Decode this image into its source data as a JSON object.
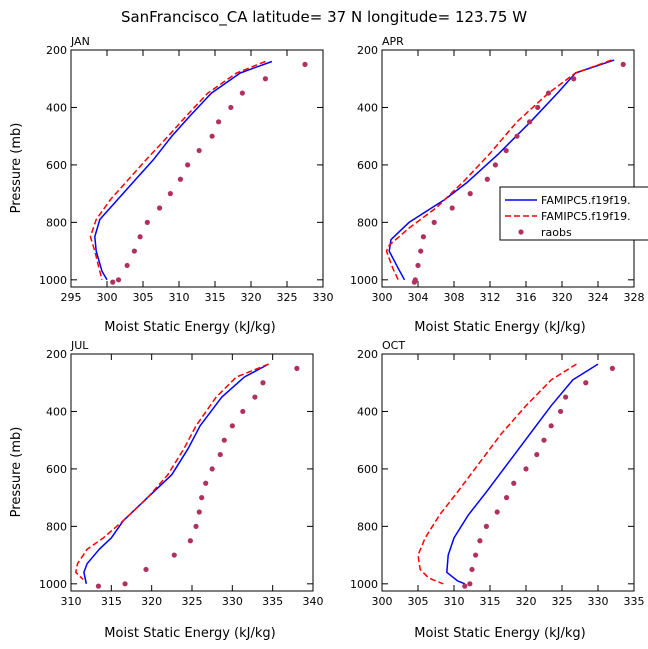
{
  "figure_title": "SanFrancisco_CA  latitude= 37 N longitude= 123.75 W",
  "colors": {
    "model1": "#0000ff",
    "model2": "#ff0000",
    "raobs": "#b03060",
    "axis": "#000000"
  },
  "legend": {
    "entries": [
      {
        "label": "FAMIPC5.f19f19.",
        "style": "solid",
        "color": "#0000ff"
      },
      {
        "label": "FAMIPC5.f19f19.",
        "style": "dashed",
        "color": "#ff0000"
      },
      {
        "label": "raobs",
        "style": "markers",
        "color": "#b03060"
      }
    ]
  },
  "chart_data": [
    {
      "type": "line",
      "title": "JAN",
      "xlabel": "Moist Static Energy (kJ/kg)",
      "ylabel": "Pressure (mb)",
      "xlim": [
        295,
        330
      ],
      "ylim": [
        1025,
        200
      ],
      "xticks": [
        295,
        300,
        305,
        310,
        315,
        320,
        325,
        330
      ],
      "xtick_labels": [
        "295",
        "300",
        "305",
        "310",
        "315",
        "320",
        "325",
        "330"
      ],
      "yticks": [
        200,
        400,
        600,
        800,
        1000
      ],
      "ytick_labels": [
        "200",
        "400",
        "600",
        "800",
        "1000"
      ],
      "series": [
        {
          "name": "FAMIPC5.f19f19.",
          "style": "solid",
          "color": "#0000ff",
          "x": [
            322.9,
            318.5,
            314.5,
            311.5,
            309.0,
            306.5,
            304.0,
            301.5,
            299.0,
            298.3,
            298.5,
            299.3,
            300.0
          ],
          "y": [
            240,
            280,
            350,
            430,
            500,
            580,
            650,
            720,
            790,
            850,
            900,
            970,
            1000
          ]
        },
        {
          "name": "FAMIPC5.f19f19.",
          "style": "dashed",
          "color": "#ff0000",
          "x": [
            322.0,
            318.0,
            314.0,
            311.0,
            308.5,
            305.5,
            303.0,
            300.5,
            298.5,
            297.7,
            298.3,
            299.3
          ],
          "y": [
            240,
            280,
            350,
            430,
            500,
            580,
            650,
            720,
            790,
            850,
            900,
            1000
          ]
        },
        {
          "name": "raobs",
          "style": "markers",
          "color": "#b03060",
          "x": [
            327.5,
            322.0,
            318.8,
            317.2,
            315.5,
            314.6,
            312.8,
            311.2,
            310.2,
            308.8,
            307.3,
            305.6,
            304.6,
            303.8,
            302.8,
            301.6,
            300.8
          ],
          "y": [
            250,
            300,
            350,
            400,
            450,
            500,
            550,
            600,
            650,
            700,
            750,
            800,
            850,
            900,
            950,
            1000,
            1008
          ]
        }
      ]
    },
    {
      "type": "line",
      "title": "APR",
      "xlabel": "Moist Static Energy (kJ/kg)",
      "ylabel": "",
      "xlim": [
        300,
        328
      ],
      "ylim": [
        1025,
        200
      ],
      "xticks": [
        300,
        304,
        308,
        312,
        316,
        320,
        324,
        328
      ],
      "xtick_labels": [
        "300",
        "304",
        "308",
        "312",
        "316",
        "320",
        "324",
        "328"
      ],
      "yticks": [
        200,
        400,
        600,
        800,
        1000
      ],
      "ytick_labels": [
        "200",
        "400",
        "600",
        "800",
        "1000"
      ],
      "series": [
        {
          "name": "FAMIPC5.f19f19.",
          "style": "solid",
          "color": "#0000ff",
          "x": [
            325.8,
            321.5,
            319.5,
            316.5,
            313.0,
            309.5,
            307.0,
            303.0,
            301.0,
            300.8,
            301.8,
            302.5
          ],
          "y": [
            235,
            280,
            350,
            450,
            560,
            660,
            720,
            800,
            860,
            900,
            960,
            1000
          ]
        },
        {
          "name": "FAMIPC5.f19f19.",
          "style": "dashed",
          "color": "#ff0000",
          "x": [
            325.5,
            321.5,
            318.5,
            315.0,
            312.0,
            309.0,
            306.0,
            303.0,
            300.8,
            300.5,
            301.2,
            301.8
          ],
          "y": [
            235,
            280,
            350,
            450,
            560,
            660,
            750,
            820,
            880,
            900,
            960,
            1000
          ]
        },
        {
          "name": "raobs",
          "style": "markers",
          "color": "#b03060",
          "x": [
            326.8,
            321.3,
            318.5,
            317.3,
            316.4,
            315.0,
            313.8,
            312.6,
            311.7,
            309.8,
            307.8,
            305.8,
            304.6,
            304.3,
            304.0,
            303.7,
            303.6
          ],
          "y": [
            250,
            300,
            350,
            400,
            450,
            500,
            550,
            600,
            650,
            700,
            750,
            800,
            850,
            900,
            950,
            1000,
            1008
          ]
        }
      ]
    },
    {
      "type": "line",
      "title": "JUL",
      "xlabel": "Moist Static Energy (kJ/kg)",
      "ylabel": "Pressure (mb)",
      "xlim": [
        310,
        340
      ],
      "ylim": [
        1025,
        200
      ],
      "xticks": [
        310,
        315,
        320,
        325,
        330,
        335,
        340
      ],
      "xtick_labels": [
        "310",
        "315",
        "320",
        "325",
        "330",
        "335",
        "340"
      ],
      "yticks": [
        200,
        400,
        600,
        800,
        1000
      ],
      "ytick_labels": [
        "200",
        "400",
        "600",
        "800",
        "1000"
      ],
      "series": [
        {
          "name": "FAMIPC5.f19f19.",
          "style": "solid",
          "color": "#0000ff",
          "x": [
            334.5,
            331.5,
            328.7,
            326.0,
            324.5,
            322.5,
            319.5,
            316.5,
            315.0,
            313.5,
            312.0,
            311.6,
            311.9
          ],
          "y": [
            235,
            280,
            350,
            450,
            530,
            620,
            700,
            780,
            840,
            880,
            930,
            960,
            1000
          ]
        },
        {
          "name": "FAMIPC5.f19f19.",
          "style": "dashed",
          "color": "#ff0000",
          "x": [
            334.5,
            330.5,
            328.0,
            325.5,
            324.0,
            322.0,
            319.5,
            316.5,
            314.0,
            312.0,
            310.8,
            310.6,
            311.5
          ],
          "y": [
            235,
            280,
            350,
            450,
            530,
            620,
            700,
            780,
            840,
            880,
            930,
            960,
            985
          ]
        },
        {
          "name": "raobs",
          "style": "markers",
          "color": "#b03060",
          "x": [
            338.0,
            333.8,
            332.8,
            331.3,
            330.0,
            329.0,
            328.5,
            327.5,
            326.7,
            326.2,
            325.9,
            325.5,
            324.8,
            322.8,
            319.3,
            316.7,
            313.4
          ],
          "y": [
            250,
            300,
            350,
            400,
            450,
            500,
            550,
            600,
            650,
            700,
            750,
            800,
            850,
            900,
            950,
            1000,
            1008
          ]
        }
      ]
    },
    {
      "type": "line",
      "title": "OCT",
      "xlabel": "Moist Static Energy (kJ/kg)",
      "ylabel": "",
      "xlim": [
        300,
        335
      ],
      "ylim": [
        1025,
        200
      ],
      "xticks": [
        300,
        305,
        310,
        315,
        320,
        325,
        330,
        335
      ],
      "xtick_labels": [
        "300",
        "305",
        "310",
        "315",
        "320",
        "325",
        "330",
        "335"
      ],
      "yticks": [
        200,
        400,
        600,
        800,
        1000
      ],
      "ytick_labels": [
        "200",
        "400",
        "600",
        "800",
        "1000"
      ],
      "series": [
        {
          "name": "FAMIPC5.f19f19.",
          "style": "solid",
          "color": "#0000ff",
          "x": [
            330.0,
            326.5,
            323.5,
            320.5,
            317.5,
            314.5,
            312.0,
            310.0,
            309.2,
            309.0,
            310.5,
            311.5
          ],
          "y": [
            235,
            290,
            380,
            480,
            580,
            680,
            760,
            840,
            900,
            960,
            990,
            1000
          ]
        },
        {
          "name": "FAMIPC5.f19f19.",
          "style": "dashed",
          "color": "#ff0000",
          "x": [
            327.0,
            323.5,
            320.0,
            316.5,
            313.5,
            310.5,
            308.0,
            306.0,
            305.0,
            305.3,
            306.5,
            308.5
          ],
          "y": [
            235,
            290,
            380,
            480,
            580,
            680,
            760,
            840,
            900,
            950,
            980,
            1000
          ]
        },
        {
          "name": "raobs",
          "style": "markers",
          "color": "#b03060",
          "x": [
            332.0,
            328.3,
            325.5,
            324.8,
            323.5,
            322.5,
            321.5,
            320.0,
            318.3,
            317.3,
            316.0,
            314.5,
            313.6,
            313.0,
            312.5,
            312.2,
            311.5
          ],
          "y": [
            250,
            300,
            350,
            400,
            450,
            500,
            550,
            600,
            650,
            700,
            750,
            800,
            850,
            900,
            950,
            1000,
            1008
          ]
        }
      ]
    }
  ]
}
